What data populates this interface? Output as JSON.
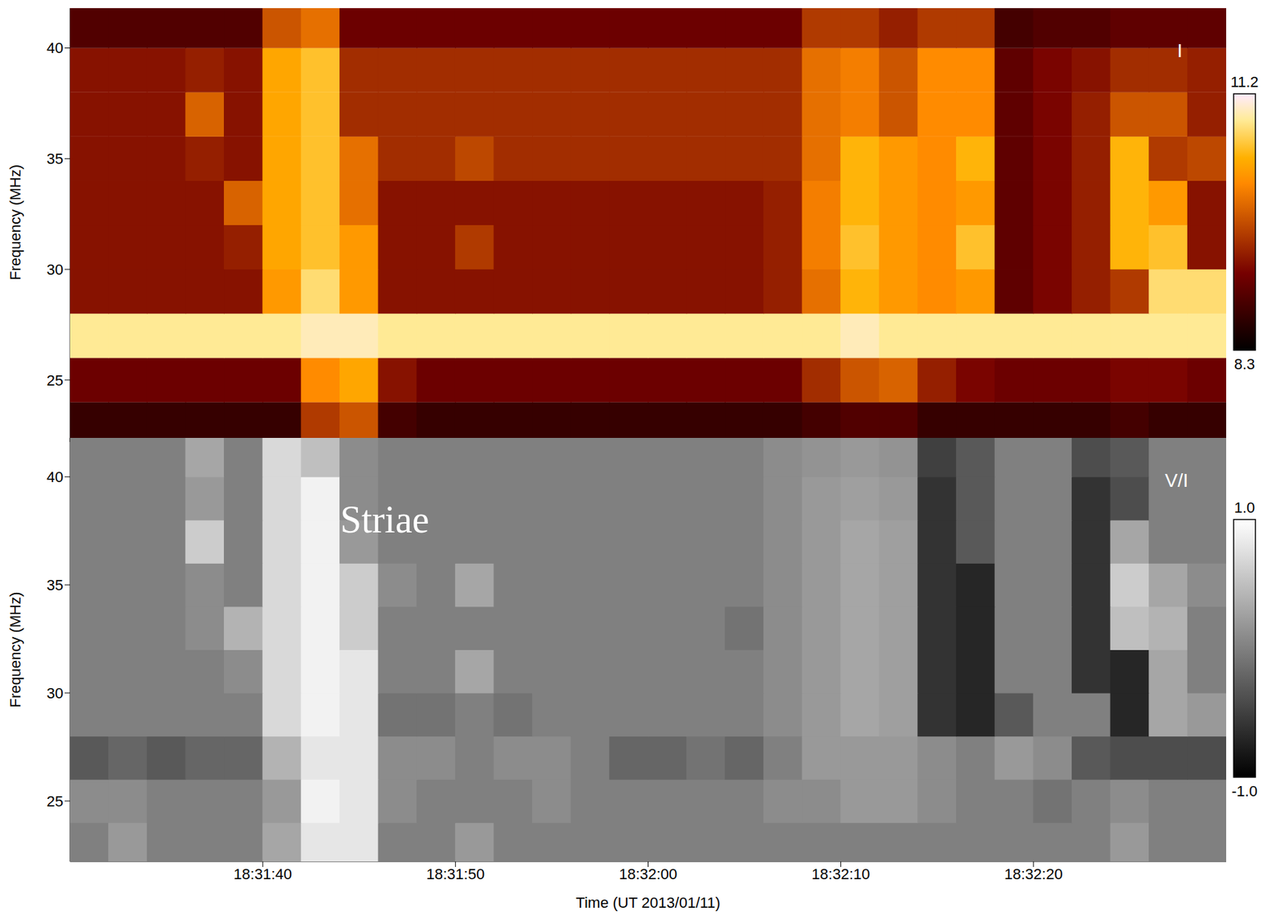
{
  "chart_data": [
    {
      "type": "heatmap",
      "label": "I",
      "x": [
        66691,
        66693,
        66695,
        66697,
        66699,
        66701,
        66703,
        66705,
        66707,
        66709,
        66711,
        66713,
        66715,
        66717,
        66719,
        66721,
        66723,
        66725,
        66727,
        66729,
        66731,
        66733,
        66735,
        66737,
        66739,
        66741,
        66743,
        66745,
        66747,
        66749
      ],
      "y": [
        23,
        25,
        27,
        29,
        31,
        33,
        35,
        37,
        39,
        41
      ],
      "values": [
        [
          8.7,
          8.7,
          8.7,
          8.7,
          8.7,
          8.7,
          9.6,
          9.8,
          8.8,
          8.7,
          8.7,
          8.7,
          8.7,
          8.7,
          8.7,
          8.7,
          8.7,
          8.7,
          8.7,
          8.8,
          8.9,
          8.9,
          8.7,
          8.7,
          8.7,
          8.7,
          8.7,
          8.8,
          8.7,
          8.7
        ],
        [
          9.1,
          9.1,
          9.1,
          9.1,
          9.1,
          9.1,
          10.2,
          10.4,
          9.3,
          9.1,
          9.1,
          9.1,
          9.1,
          9.1,
          9.1,
          9.1,
          9.1,
          9.1,
          9.1,
          9.5,
          9.8,
          9.9,
          9.4,
          9.2,
          9.1,
          9.1,
          9.1,
          9.2,
          9.2,
          9.1
        ],
        [
          10.9,
          10.9,
          10.9,
          10.9,
          10.9,
          10.9,
          11.0,
          11.0,
          10.9,
          10.9,
          10.9,
          10.9,
          10.9,
          10.9,
          10.9,
          10.9,
          10.9,
          10.9,
          10.9,
          10.9,
          11.0,
          10.9,
          10.9,
          10.9,
          10.9,
          10.9,
          10.9,
          10.9,
          10.9,
          10.9
        ],
        [
          9.3,
          9.3,
          9.3,
          9.3,
          9.3,
          10.3,
          10.8,
          10.3,
          9.3,
          9.3,
          9.3,
          9.3,
          9.3,
          9.3,
          9.3,
          9.3,
          9.3,
          9.3,
          9.4,
          10.0,
          10.5,
          10.3,
          10.2,
          10.3,
          9.0,
          9.2,
          9.4,
          9.6,
          10.8,
          10.8
        ],
        [
          9.3,
          9.3,
          9.3,
          9.3,
          9.4,
          10.4,
          10.6,
          10.3,
          9.3,
          9.3,
          9.6,
          9.3,
          9.3,
          9.3,
          9.3,
          9.3,
          9.3,
          9.3,
          9.4,
          10.1,
          10.6,
          10.3,
          10.2,
          10.6,
          9.0,
          9.2,
          9.4,
          10.5,
          10.6,
          9.3
        ],
        [
          9.3,
          9.3,
          9.3,
          9.3,
          9.9,
          10.4,
          10.6,
          10.0,
          9.3,
          9.3,
          9.3,
          9.3,
          9.3,
          9.3,
          9.3,
          9.3,
          9.3,
          9.3,
          9.4,
          10.1,
          10.5,
          10.3,
          10.2,
          10.3,
          9.0,
          9.2,
          9.4,
          10.5,
          10.3,
          9.3
        ],
        [
          9.3,
          9.3,
          9.3,
          9.4,
          9.3,
          10.4,
          10.6,
          10.0,
          9.5,
          9.5,
          9.7,
          9.5,
          9.5,
          9.5,
          9.5,
          9.5,
          9.5,
          9.5,
          9.5,
          10.0,
          10.5,
          10.3,
          10.2,
          10.5,
          9.0,
          9.2,
          9.4,
          10.5,
          9.6,
          9.7
        ],
        [
          9.3,
          9.3,
          9.3,
          9.9,
          9.3,
          10.4,
          10.6,
          9.5,
          9.5,
          9.5,
          9.5,
          9.5,
          9.5,
          9.5,
          9.5,
          9.5,
          9.5,
          9.5,
          9.5,
          10.0,
          10.1,
          9.8,
          10.2,
          10.2,
          9.0,
          9.2,
          9.4,
          9.8,
          9.8,
          9.4
        ],
        [
          9.3,
          9.3,
          9.3,
          9.4,
          9.3,
          10.4,
          10.6,
          9.5,
          9.5,
          9.5,
          9.5,
          9.5,
          9.5,
          9.5,
          9.5,
          9.5,
          9.5,
          9.5,
          9.5,
          10.0,
          10.1,
          9.8,
          10.2,
          10.2,
          9.0,
          9.2,
          9.3,
          9.5,
          9.5,
          9.4
        ],
        [
          8.9,
          8.9,
          8.9,
          8.9,
          8.9,
          9.8,
          10.0,
          9.1,
          9.1,
          9.1,
          9.1,
          9.1,
          9.1,
          9.1,
          9.1,
          9.1,
          9.1,
          9.1,
          9.1,
          9.6,
          9.6,
          9.4,
          9.6,
          9.6,
          8.8,
          8.9,
          8.9,
          9.0,
          9.0,
          9.0
        ]
      ],
      "xlim": [
        66690,
        66750
      ],
      "ylim": [
        22.2,
        41.8
      ],
      "xticks": [
        66700,
        66710,
        66720,
        66730,
        66740
      ],
      "yticks": [
        25,
        30,
        35,
        40
      ],
      "ylabel": "Frequency (MHz)",
      "tick_labels": "y",
      "colorbar": {
        "range": [
          8.3,
          11.2
        ],
        "ticks": [
          11.2,
          8.3
        ]
      }
    },
    {
      "type": "heatmap",
      "label": "V/I",
      "annotations": [
        "Striae"
      ],
      "x": [
        66691,
        66693,
        66695,
        66697,
        66699,
        66701,
        66703,
        66705,
        66707,
        66709,
        66711,
        66713,
        66715,
        66717,
        66719,
        66721,
        66723,
        66725,
        66727,
        66729,
        66731,
        66733,
        66735,
        66737,
        66739,
        66741,
        66743,
        66745,
        66747,
        66749
      ],
      "y": [
        23,
        25,
        27,
        29,
        31,
        33,
        35,
        37,
        39,
        41
      ],
      "values": [
        [
          0.0,
          0.2,
          0.0,
          0.0,
          0.0,
          0.3,
          0.8,
          0.8,
          0.0,
          0.0,
          0.2,
          0.0,
          0.0,
          0.0,
          0.0,
          0.0,
          0.0,
          0.0,
          0.0,
          0.0,
          0.0,
          0.0,
          0.0,
          0.0,
          0.0,
          0.0,
          0.0,
          0.2,
          0.0,
          0.0
        ],
        [
          0.1,
          0.1,
          0.0,
          0.0,
          0.0,
          0.2,
          0.9,
          0.8,
          0.1,
          0.0,
          0.0,
          0.0,
          0.1,
          0.0,
          0.0,
          0.0,
          0.0,
          0.0,
          0.1,
          0.1,
          0.2,
          0.2,
          0.1,
          0.0,
          0.0,
          -0.1,
          0.0,
          0.1,
          0.0,
          0.0
        ],
        [
          -0.3,
          -0.2,
          -0.3,
          -0.2,
          -0.2,
          0.4,
          0.8,
          0.8,
          0.1,
          0.1,
          0.0,
          0.1,
          0.1,
          0.0,
          -0.2,
          -0.2,
          -0.1,
          -0.2,
          0.0,
          0.2,
          0.2,
          0.2,
          0.1,
          0.0,
          0.2,
          0.1,
          -0.3,
          -0.4,
          -0.4,
          -0.4
        ],
        [
          0.0,
          0.0,
          0.0,
          0.0,
          0.0,
          0.7,
          0.9,
          0.8,
          -0.1,
          -0.1,
          0.0,
          -0.1,
          0.0,
          0.0,
          0.0,
          0.0,
          0.0,
          0.0,
          0.1,
          0.2,
          0.3,
          0.25,
          -0.6,
          -0.7,
          -0.3,
          0.0,
          0.0,
          -0.7,
          0.3,
          0.2
        ],
        [
          0.0,
          0.0,
          0.0,
          0.0,
          0.1,
          0.7,
          0.9,
          0.8,
          0.0,
          0.0,
          0.3,
          0.0,
          0.0,
          0.0,
          0.0,
          0.0,
          0.0,
          0.0,
          0.1,
          0.2,
          0.3,
          0.25,
          -0.6,
          -0.7,
          0.0,
          0.0,
          -0.6,
          -0.7,
          0.3,
          0.0
        ],
        [
          0.0,
          0.0,
          0.0,
          0.1,
          0.4,
          0.7,
          0.9,
          0.6,
          0.0,
          0.0,
          0.0,
          0.0,
          0.0,
          0.0,
          0.0,
          0.0,
          0.0,
          -0.1,
          0.1,
          0.2,
          0.3,
          0.25,
          -0.6,
          -0.7,
          0.0,
          0.0,
          -0.6,
          0.5,
          0.4,
          0.0
        ],
        [
          0.0,
          0.0,
          0.0,
          0.1,
          0.0,
          0.7,
          0.9,
          0.6,
          0.1,
          0.0,
          0.3,
          0.0,
          0.0,
          0.0,
          0.0,
          0.0,
          0.0,
          0.0,
          0.1,
          0.2,
          0.3,
          0.25,
          -0.6,
          -0.7,
          0.0,
          0.0,
          -0.6,
          0.6,
          0.3,
          0.1
        ],
        [
          0.0,
          0.0,
          0.0,
          0.6,
          0.0,
          0.7,
          0.9,
          0.2,
          0.0,
          0.0,
          0.0,
          0.0,
          0.0,
          0.0,
          0.0,
          0.0,
          0.0,
          0.0,
          0.1,
          0.2,
          0.3,
          0.25,
          -0.6,
          -0.3,
          0.0,
          0.0,
          -0.6,
          0.3,
          0.0,
          0.0
        ],
        [
          0.0,
          0.0,
          0.0,
          0.2,
          0.0,
          0.7,
          0.9,
          0.1,
          0.0,
          0.0,
          0.0,
          0.0,
          0.0,
          0.0,
          0.0,
          0.0,
          0.0,
          0.0,
          0.1,
          0.2,
          0.25,
          0.2,
          -0.6,
          -0.3,
          0.0,
          0.0,
          -0.6,
          -0.4,
          0.0,
          0.0
        ],
        [
          0.0,
          0.0,
          0.0,
          0.3,
          0.0,
          0.7,
          0.5,
          0.1,
          0.0,
          0.0,
          0.0,
          0.0,
          0.0,
          0.0,
          0.0,
          0.0,
          0.0,
          0.0,
          0.1,
          0.15,
          0.2,
          0.15,
          -0.5,
          -0.3,
          0.0,
          0.0,
          -0.4,
          -0.3,
          0.0,
          0.0
        ]
      ],
      "xlim": [
        66690,
        66750
      ],
      "ylim": [
        22.2,
        41.8
      ],
      "xticks": [
        {
          "value": 66700,
          "label": "18:31:40"
        },
        {
          "value": 66710,
          "label": "18:31:50"
        },
        {
          "value": 66720,
          "label": "18:32:00"
        },
        {
          "value": 66730,
          "label": "18:32:10"
        },
        {
          "value": 66740,
          "label": "18:32:20"
        }
      ],
      "yticks": [
        25,
        30,
        35,
        40
      ],
      "xlabel": "Time (UT 2013/01/11)",
      "ylabel": "Frequency (MHz)",
      "colorbar": {
        "range": [
          -1,
          1
        ],
        "ticks": [
          {
            "value": 1,
            "label": "1.0"
          },
          {
            "value": -1,
            "label": "-1.0"
          }
        ]
      }
    }
  ]
}
